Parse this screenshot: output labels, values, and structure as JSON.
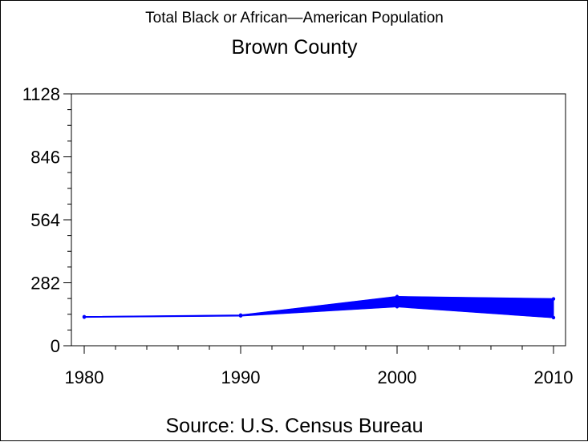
{
  "chart_data": {
    "type": "area",
    "title": "Total Black or African—American Population",
    "subtitle": "Brown County",
    "footnote": "Source: U.S. Census Bureau",
    "xlabel": "",
    "ylabel": "",
    "x_ticks": [
      "1980",
      "1990",
      "2000",
      "2010"
    ],
    "y_ticks": [
      "0",
      "282",
      "564",
      "846",
      "1128"
    ],
    "xlim": [
      1980,
      2010
    ],
    "ylim": [
      0,
      1128
    ],
    "grid": false,
    "series": [
      {
        "x": [
          1980,
          1990,
          2000,
          2010
        ],
        "values": [
          130,
          137,
          220,
          210
        ]
      },
      {
        "x": [
          1980,
          1990,
          2000,
          2010
        ],
        "values": [
          128,
          134,
          175,
          126
        ]
      }
    ],
    "colors": {
      "series": "#0000ff",
      "axis": "#000000",
      "text": "#000000"
    }
  }
}
